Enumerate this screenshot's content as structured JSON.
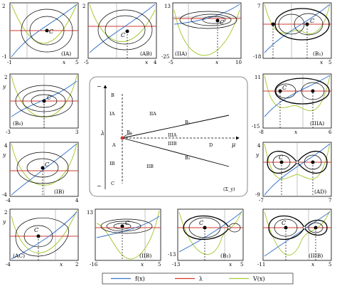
{
  "colors": {
    "f": "#3a77c9",
    "lambda": "#d33a2c",
    "V": "#a8cc3a",
    "orbit": "#000000",
    "mid": "#888888"
  },
  "point_label": "C",
  "axis_x": "x",
  "axis_y": "y",
  "panels": [
    {
      "id": "IA",
      "tag": "(IA)",
      "xmin": "-1",
      "xmax": "5",
      "ymax": "2",
      "ymin": "-1"
    },
    {
      "id": "AB",
      "tag": "(AB)",
      "xmin": "-5",
      "xmax": "4",
      "ymax": "2",
      "ymin": ""
    },
    {
      "id": "IIA",
      "tag": "(IIA)",
      "xmin": "-5",
      "xmax": "10",
      "ymax": "13",
      "ymin": "-25"
    },
    {
      "id": "B1",
      "tag": "(B₁)",
      "xmin": "",
      "xmax": "5",
      "ymax": "7",
      "ymin": "-18"
    },
    {
      "id": "B0",
      "tag": "(B₀)",
      "xmin": "-3",
      "xmax": "3",
      "ymax": "2",
      "ymin": ""
    },
    {
      "id": "IIIA",
      "tag": "(IIIA)",
      "xmin": "-8",
      "xmax": "6",
      "ymax": "11",
      "ymin": "-15"
    },
    {
      "id": "IB",
      "tag": "(IB)",
      "xmin": "-4",
      "xmax": "4",
      "ymax": "4",
      "ymin": "-4"
    },
    {
      "id": "AD",
      "tag": "(AD)",
      "xmin": "-7",
      "xmax": "7",
      "ymax": "4",
      "ymin": "-9"
    },
    {
      "id": "AC",
      "tag": "(AC)",
      "xmin": "-4",
      "xmax": "2",
      "ymax": "2",
      "ymin": ""
    },
    {
      "id": "IIB",
      "tag": "(IIB)",
      "xmin": "-16",
      "xmax": "5",
      "ymax": "13",
      "ymin": ""
    },
    {
      "id": "B2",
      "tag": "(B₂)",
      "xmin": "-13",
      "xmax": "5",
      "ymax": "",
      "ymin": "-13"
    },
    {
      "id": "IIIB",
      "tag": "(IIIB)",
      "xmin": "-11",
      "xmax": "5",
      "ymax": "",
      "ymin": ""
    }
  ],
  "center": {
    "tag": "(Σ_y)",
    "axis_mu": "μ",
    "axis_lambda": "λ",
    "regions": [
      "IA",
      "IIA",
      "IIIA",
      "IIIB",
      "IB",
      "IIB"
    ],
    "points": [
      "B",
      "A",
      "C",
      "D"
    ],
    "curves": [
      "B₀",
      "B₁",
      "B₂"
    ]
  },
  "legend": {
    "f": "f(x)",
    "lambda": "λ",
    "V": "V(x)"
  }
}
